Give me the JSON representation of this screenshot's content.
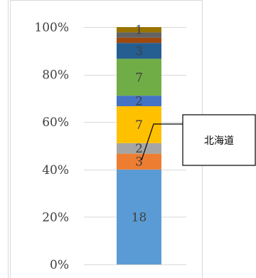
{
  "chart_data": {
    "type": "bar",
    "stacked": true,
    "normalized": true,
    "categories": [
      ""
    ],
    "ylim": [
      0,
      100
    ],
    "ytick_labels": [
      "0%",
      "20%",
      "40%",
      "60%",
      "80%",
      "100%"
    ],
    "ytick_values": [
      0,
      20,
      40,
      60,
      80,
      100
    ],
    "grid": true,
    "segments": [
      {
        "value": 18,
        "label": "18",
        "color": "#5b9bd5"
      },
      {
        "value": 3,
        "label": "3",
        "color": "#ed7d31"
      },
      {
        "value": 2,
        "label": "2",
        "color": "#a5a5a5"
      },
      {
        "value": 7,
        "label": "7",
        "color": "#ffc000"
      },
      {
        "value": 2,
        "label": "2",
        "color": "#4472c4"
      },
      {
        "value": 7,
        "label": "7",
        "color": "#70ad47"
      },
      {
        "value": 3,
        "label": "3",
        "color": "#255e91"
      },
      {
        "value": 1,
        "label": "",
        "color": "#9e480e"
      },
      {
        "value": 1,
        "label": "",
        "color": "#636363"
      },
      {
        "value": 1,
        "label": "1",
        "color": "#997300"
      }
    ],
    "callout": {
      "text": "北海道",
      "segment_index": 1
    }
  }
}
